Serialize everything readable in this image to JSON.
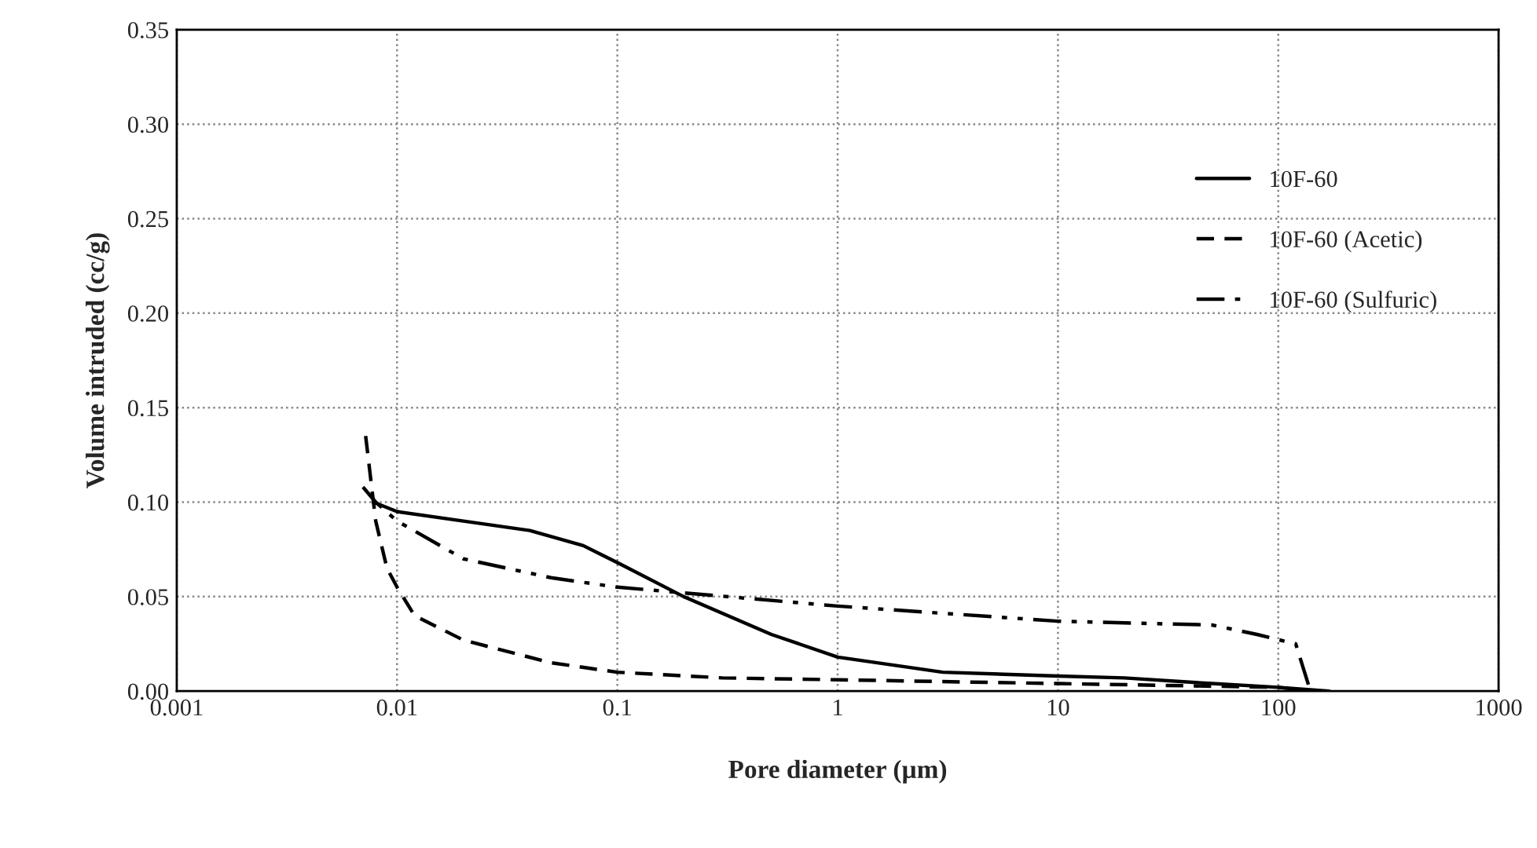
{
  "chart_data": {
    "type": "line",
    "xlabel": "Pore diameter (µm)",
    "ylabel": "Volume intruded (cc/g)",
    "log": "x",
    "grid": true,
    "legend": "right",
    "xlim": [
      0.001,
      1000
    ],
    "xticks": [
      {
        "value": 0.001,
        "label": "0.001"
      },
      {
        "value": 0.01,
        "label": "0.01"
      },
      {
        "value": 0.1,
        "label": "0.1"
      },
      {
        "value": 1,
        "label": "1"
      },
      {
        "value": 10,
        "label": "10"
      },
      {
        "value": 100,
        "label": "100"
      },
      {
        "value": 1000,
        "label": "1000"
      }
    ],
    "ylim": [
      0,
      0.35
    ],
    "yticks": [
      {
        "value": 0,
        "label": "0.00"
      },
      {
        "value": 0.05,
        "label": "0.05"
      },
      {
        "value": 0.1,
        "label": "0.10"
      },
      {
        "value": 0.15,
        "label": "0.15"
      },
      {
        "value": 0.2,
        "label": "0.20"
      },
      {
        "value": 0.25,
        "label": "0.25"
      },
      {
        "value": 0.3,
        "label": "0.30"
      },
      {
        "value": 0.35,
        "label": "0.35"
      }
    ],
    "series": [
      {
        "name": "10F-60",
        "color": "#000000",
        "line_style": "solid",
        "x": [
          0.0078,
          0.01,
          0.02,
          0.04,
          0.07,
          0.1,
          0.2,
          0.5,
          1,
          3,
          10,
          20,
          50,
          100,
          170
        ],
        "values": [
          0.1,
          0.095,
          0.09,
          0.085,
          0.077,
          0.068,
          0.05,
          0.03,
          0.018,
          0.01,
          0.008,
          0.007,
          0.004,
          0.002,
          0
        ]
      },
      {
        "name": "10F-60 (Acetic)",
        "color": "#000000",
        "line_style": "dashed",
        "x": [
          0.0072,
          0.008,
          0.009,
          0.01,
          0.012,
          0.02,
          0.05,
          0.1,
          0.3,
          1,
          10,
          100,
          140
        ],
        "values": [
          0.135,
          0.09,
          0.065,
          0.055,
          0.04,
          0.027,
          0.015,
          0.01,
          0.007,
          0.006,
          0.004,
          0.002,
          0
        ]
      },
      {
        "name": "10F-60 (Sulfuric)",
        "color": "#000000",
        "line_style": "dashdot",
        "x": [
          0.007,
          0.008,
          0.01,
          0.02,
          0.05,
          0.1,
          0.2,
          1,
          10,
          50,
          80,
          120,
          140
        ],
        "values": [
          0.108,
          0.1,
          0.09,
          0.07,
          0.06,
          0.055,
          0.052,
          0.045,
          0.037,
          0.035,
          0.03,
          0.025,
          0
        ]
      }
    ]
  }
}
